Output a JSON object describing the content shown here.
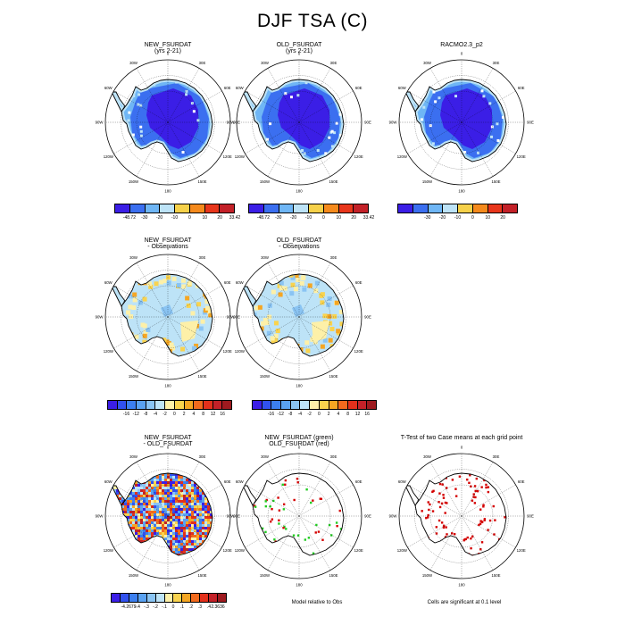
{
  "title": "DJF TSA (C)",
  "map_labels": [
    "0",
    "30E",
    "60E",
    "90E",
    "120E",
    "150E",
    "180",
    "150W",
    "120W",
    "90W",
    "60W",
    "30W"
  ],
  "panels": [
    {
      "row": 0,
      "col": 0,
      "title": [
        "NEW_FSURDAT",
        "(yrs 2-21)"
      ],
      "style": "abs"
    },
    {
      "row": 0,
      "col": 1,
      "title": [
        "OLD_FSURDAT",
        "(yrs 2-21)"
      ],
      "style": "abs"
    },
    {
      "row": 0,
      "col": 2,
      "title": [
        "RACMO2.3_p2"
      ],
      "style": "abs"
    },
    {
      "row": 1,
      "col": 0,
      "title": [
        "NEW_FSURDAT",
        "- Observations"
      ],
      "style": "diff"
    },
    {
      "row": 1,
      "col": 1,
      "title": [
        "OLD_FSURDAT",
        "- Observations"
      ],
      "style": "diff"
    },
    {
      "row": 2,
      "col": 0,
      "title": [
        "NEW_FSURDAT",
        "- OLD_FSURDAT"
      ],
      "style": "noise"
    },
    {
      "row": 2,
      "col": 1,
      "title": [
        "NEW_FSURDAT (green)",
        "OLD_FSURDAT (red)"
      ],
      "style": "redgreen"
    },
    {
      "row": 2,
      "col": 2,
      "title": [
        "T-Test of two Case means at each grid point"
      ],
      "style": "ttest"
    }
  ],
  "colorbars": [
    {
      "id": "cb1",
      "colors": [
        "#3b1ee6",
        "#3b6ff0",
        "#6fb6f5",
        "#bde3f7",
        "#f6d14a",
        "#f58a1c",
        "#e8361b",
        "#c32128"
      ],
      "labels": [
        "-48.72",
        "-30",
        "-20",
        "-10",
        "0",
        "10",
        "20",
        "33.42"
      ]
    },
    {
      "id": "cb2",
      "colors": [
        "#3b1ee6",
        "#3b6ff0",
        "#6fb6f5",
        "#bde3f7",
        "#f6d14a",
        "#f58a1c",
        "#e8361b",
        "#c32128"
      ],
      "labels": [
        "-48.72",
        "-30",
        "-20",
        "-10",
        "0",
        "10",
        "20",
        "33.42"
      ]
    },
    {
      "id": "cb3",
      "colors": [
        "#3b1ee6",
        "#3b6ff0",
        "#6fb6f5",
        "#bde3f7",
        "#f6d14a",
        "#f58a1c",
        "#e8361b",
        "#c32128"
      ],
      "labels": [
        "-30",
        "-20",
        "-10",
        "0",
        "10",
        "20"
      ]
    },
    {
      "id": "cb4",
      "colors": [
        "#3b1ee6",
        "#3151ef",
        "#3c7fef",
        "#5aa2f1",
        "#8ac4f3",
        "#bde3f7",
        "#fdf0a8",
        "#f9d34e",
        "#f5a623",
        "#f26a1d",
        "#e3301b",
        "#c32128",
        "#9e1a1f"
      ],
      "labels": [
        "-16",
        "-12",
        "-8",
        "-4",
        "-2",
        "0",
        "2",
        "4",
        "8",
        "12",
        "16"
      ]
    },
    {
      "id": "cb5",
      "colors": [
        "#3b1ee6",
        "#3151ef",
        "#3c7fef",
        "#5aa2f1",
        "#8ac4f3",
        "#bde3f7",
        "#fdf0a8",
        "#f9d34e",
        "#f5a623",
        "#f26a1d",
        "#e3301b",
        "#c32128",
        "#9e1a1f"
      ],
      "labels": [
        "-16",
        "-12",
        "-8",
        "-4",
        "-2",
        "0",
        "2",
        "4",
        "8",
        "12",
        "16"
      ]
    },
    {
      "id": "cb6",
      "colors": [
        "#3b1ee6",
        "#3151ef",
        "#3c7fef",
        "#5aa2f1",
        "#8ac4f3",
        "#bde3f7",
        "#fdf0a8",
        "#f9d34e",
        "#f5a623",
        "#f26a1d",
        "#e3301b",
        "#c32128",
        "#9e1a1f"
      ],
      "labels": [
        "-4.2679",
        "-.4",
        "-.3",
        "-.2",
        "-.1",
        "0",
        ".1",
        ".2",
        ".3",
        ".4",
        "2.3636"
      ]
    }
  ],
  "notes": {
    "model_relative": "Model relative to Obs",
    "significance": "Cells are significant at 0.1 level"
  },
  "chart_data": {
    "type": "heatmap",
    "title": "DJF TSA (C)",
    "projection": "south polar stereographic",
    "variable": "TSA",
    "season": "DJF",
    "units": "C",
    "panels": [
      "NEW_FSURDAT (yrs 2-21)",
      "OLD_FSURDAT (yrs 2-21)",
      "RACMO2.3_p2",
      "NEW_FSURDAT - Observations",
      "OLD_FSURDAT - Observations",
      "NEW_FSURDAT - OLD_FSURDAT",
      "NEW_FSURDAT (green) OLD_FSURDAT (red)",
      "T-Test of two Case means at each grid point"
    ],
    "abs_levels": [
      -48.72,
      -30,
      -20,
      -10,
      0,
      10,
      20,
      33.42
    ],
    "obs_levels": [
      -30,
      -20,
      -10,
      0,
      10,
      20
    ],
    "diff_levels": [
      -16,
      -12,
      -8,
      -4,
      -2,
      0,
      2,
      4,
      8,
      12,
      16
    ],
    "case_diff_levels": [
      -4.2679,
      -0.4,
      -0.3,
      -0.2,
      -0.1,
      0,
      0.1,
      0.2,
      0.3,
      0.4,
      2.3636
    ]
  }
}
